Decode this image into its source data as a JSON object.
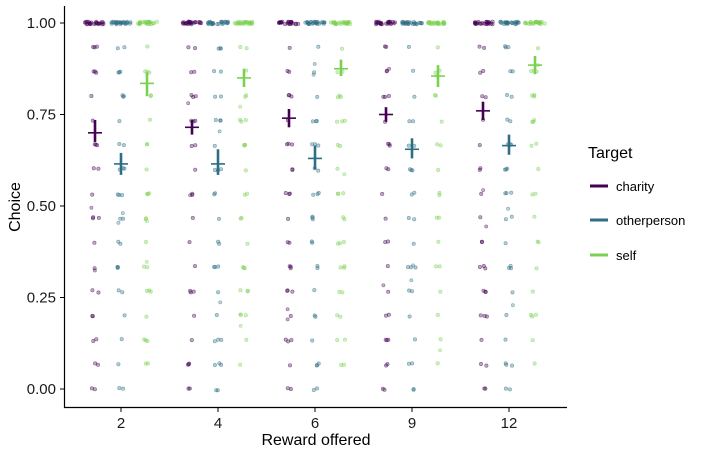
{
  "chart_data": {
    "type": "scatter",
    "xlabel": "Reward offered",
    "ylabel": "Choice",
    "categories": [
      "2",
      "4",
      "6",
      "9",
      "12"
    ],
    "ylim": [
      -0.04,
      1.05
    ],
    "yticks": [
      0.0,
      0.25,
      0.5,
      0.75,
      1.0
    ],
    "ytick_labels": [
      "0.00",
      "0.25",
      "0.50",
      "0.75",
      "1.00"
    ],
    "grid": false,
    "legend": {
      "title": "Target",
      "position": "right"
    },
    "series": [
      {
        "name": "charity",
        "color": "#440154",
        "means": [
          0.7,
          0.715,
          0.74,
          0.75,
          0.76
        ],
        "ci_low": [
          0.675,
          0.695,
          0.715,
          0.73,
          0.735
        ],
        "ci_high": [
          0.735,
          0.735,
          0.765,
          0.77,
          0.785
        ]
      },
      {
        "name": "otherperson",
        "color": "#2c6e84",
        "means": [
          0.615,
          0.615,
          0.63,
          0.655,
          0.665
        ],
        "ci_low": [
          0.585,
          0.585,
          0.6,
          0.63,
          0.64
        ],
        "ci_high": [
          0.645,
          0.655,
          0.665,
          0.685,
          0.695
        ]
      },
      {
        "name": "self",
        "color": "#7ad151",
        "means": [
          0.835,
          0.85,
          0.875,
          0.855,
          0.885
        ],
        "ci_low": [
          0.8,
          0.825,
          0.855,
          0.825,
          0.86
        ],
        "ci_high": [
          0.865,
          0.875,
          0.9,
          0.885,
          0.91
        ]
      }
    ],
    "observed_choice_levels": [
      0.0,
      0.067,
      0.133,
      0.2,
      0.267,
      0.333,
      0.4,
      0.467,
      0.533,
      0.6,
      0.667,
      0.733,
      0.8,
      0.867,
      0.933,
      1.0
    ]
  }
}
